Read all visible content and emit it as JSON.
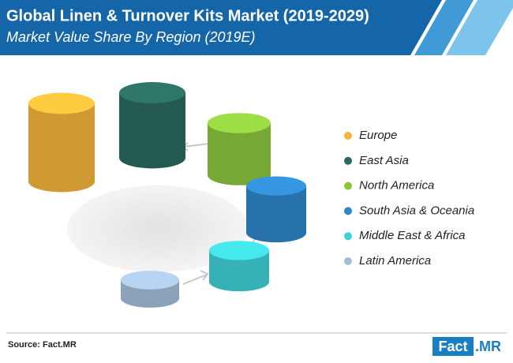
{
  "chart_data": {
    "type": "cylinder",
    "title": "Global Linen & Turnover Kits Market (2019-2029)",
    "subtitle": "Market Value Share By Region (2019E)",
    "categories": [
      "Europe",
      "East Asia",
      "North America",
      "South Asia & Oceania",
      "Middle East & Africa",
      "Latin America"
    ],
    "values": [
      30,
      25,
      20,
      18,
      12,
      7
    ],
    "colors": [
      "#f2b53a",
      "#2a6a5e",
      "#8cc63f",
      "#2f86c9",
      "#3fd0d6",
      "#a3bed8"
    ],
    "source": "Source: Fact.MR",
    "logo": [
      "Fact",
      ".MR"
    ]
  }
}
